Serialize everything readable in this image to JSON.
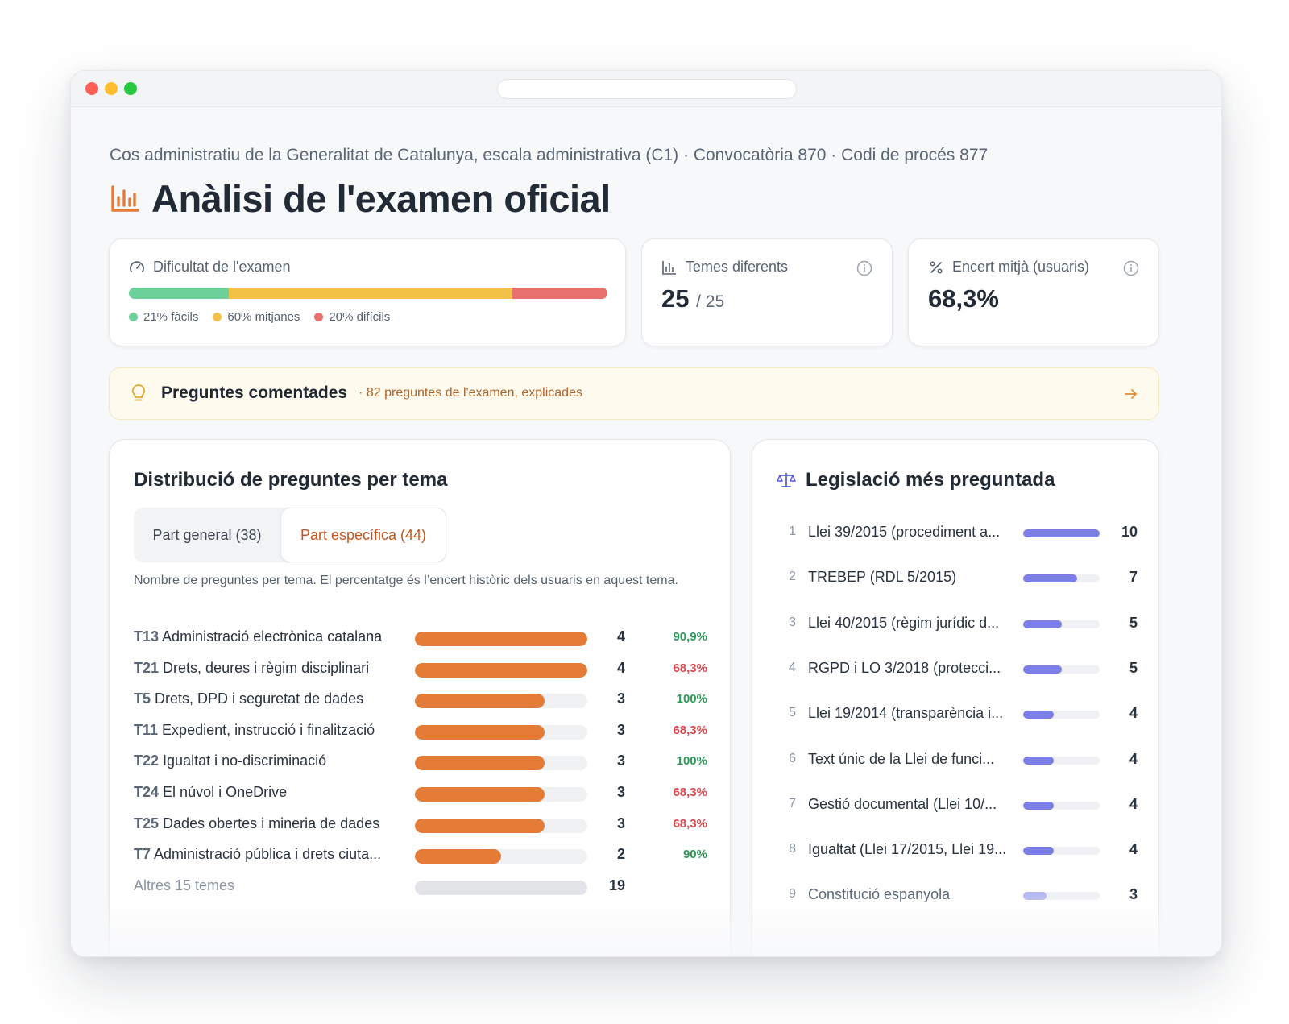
{
  "header": {
    "breadcrumb": "Cos administratiu de la Generalitat de Catalunya, escala administrativa (C1) · Convocatòria 870 · Codi de procés 877",
    "title": "Anàlisi de l'examen oficial",
    "title_icon": "bar-chart-icon"
  },
  "difficulty": {
    "label": "Dificultat de l'examen",
    "icon": "gauge-icon",
    "easy_pct": 21,
    "medium_pct": 60,
    "hard_pct": 20,
    "legend": [
      "21% fàcils",
      "60% mitjanes",
      "20% difícils"
    ],
    "colors": {
      "easy": "#6dcf9a",
      "medium": "#f2c146",
      "hard": "#e8706f"
    }
  },
  "topics_stat": {
    "label": "Temes diferents",
    "value": "25",
    "total": "/ 25"
  },
  "accuracy_stat": {
    "label": "Encert mitjà (usuaris)",
    "value": "68,3%"
  },
  "banner": {
    "title": "Preguntes comentades",
    "subtitle": "· 82 preguntes de l'examen, explicades"
  },
  "distribution": {
    "title": "Distribució de preguntes per tema",
    "tabs": [
      "Part general (38)",
      "Part específica (44)"
    ],
    "active_tab": 1,
    "description": "Nombre de preguntes per tema. El percentatge és l’encert històric dels usuaris en aquest tema.",
    "max_count": 4,
    "rows": [
      {
        "code": "T13",
        "name": "Administració electrònica catalana",
        "count": 4,
        "pct": "90,9%",
        "level": "good"
      },
      {
        "code": "T21",
        "name": "Drets, deures i règim disciplinari",
        "count": 4,
        "pct": "68,3%",
        "level": "bad"
      },
      {
        "code": "T5",
        "name": "Drets, DPD i seguretat de dades",
        "count": 3,
        "pct": "100%",
        "level": "good"
      },
      {
        "code": "T11",
        "name": "Expedient, instrucció i finalització",
        "count": 3,
        "pct": "68,3%",
        "level": "bad"
      },
      {
        "code": "T22",
        "name": "Igualtat i no-discriminació",
        "count": 3,
        "pct": "100%",
        "level": "good"
      },
      {
        "code": "T24",
        "name": "El núvol i OneDrive",
        "count": 3,
        "pct": "68,3%",
        "level": "bad"
      },
      {
        "code": "T25",
        "name": "Dades obertes i mineria de dades",
        "count": 3,
        "pct": "68,3%",
        "level": "bad"
      },
      {
        "code": "T7",
        "name": "Administració pública i drets ciuta...",
        "count": 2,
        "pct": "90%",
        "level": "good"
      }
    ],
    "others": {
      "label": "Altres 15 temes",
      "count": 19
    }
  },
  "legislation": {
    "title": "Legislació més preguntada",
    "icon": "scales-icon",
    "max_count": 10,
    "rows": [
      {
        "idx": "1",
        "name": "Llei 39/2015 (procediment a...",
        "count": 10
      },
      {
        "idx": "2",
        "name": "TREBEP (RDL 5/2015)",
        "count": 7
      },
      {
        "idx": "3",
        "name": "Llei 40/2015 (règim jurídic d...",
        "count": 5
      },
      {
        "idx": "4",
        "name": "RGPD i LO 3/2018 (protecci...",
        "count": 5
      },
      {
        "idx": "5",
        "name": "Llei 19/2014 (transparència i...",
        "count": 4
      },
      {
        "idx": "6",
        "name": "Text únic de la Llei de funci...",
        "count": 4
      },
      {
        "idx": "7",
        "name": "Gestió documental (Llei 10/...",
        "count": 4
      },
      {
        "idx": "8",
        "name": "Igualtat (Llei 17/2015, Llei 19...",
        "count": 4
      },
      {
        "idx": "9",
        "name": "Constitució espanyola",
        "count": 3
      }
    ]
  },
  "colors": {
    "accent": "#e47b37",
    "good": "#2e9a5a",
    "bad": "#d9474c",
    "legislation_bar": "#7b7fe6"
  }
}
